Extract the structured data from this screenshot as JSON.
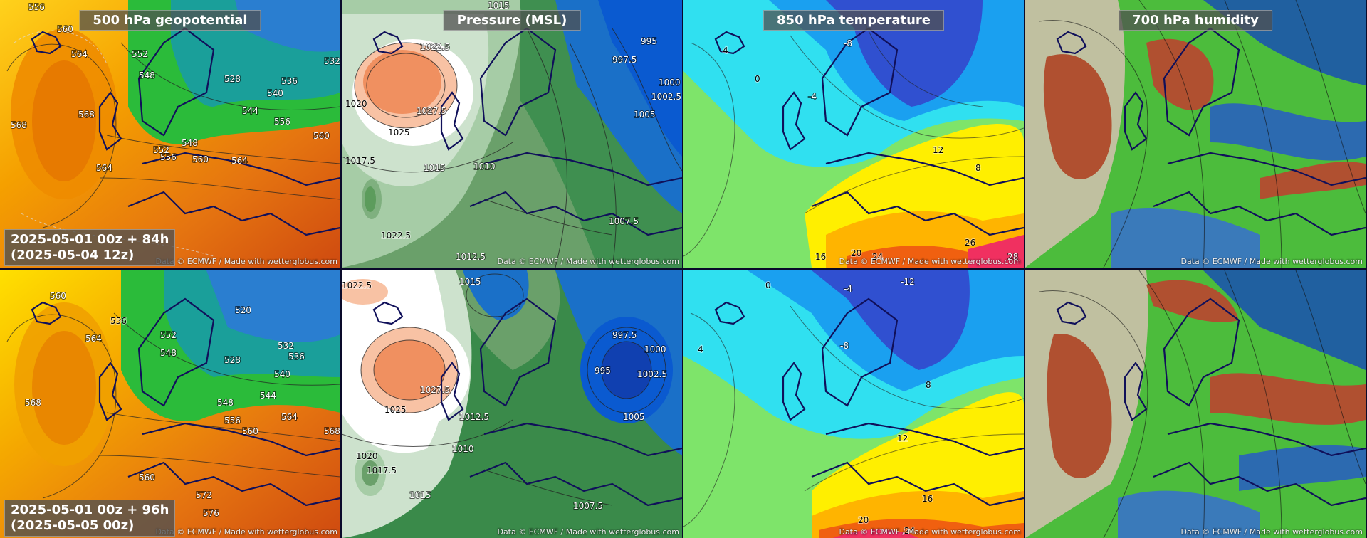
{
  "panels": {
    "geopotential": {
      "title": "500 hPa geopotential",
      "labels_top": [
        "556",
        "560",
        "564",
        "568",
        "552",
        "548",
        "540",
        "544",
        "536",
        "532",
        "528",
        "556",
        "560",
        "564",
        "568",
        "556",
        "560",
        "564",
        "548",
        "552"
      ],
      "labels_bottom": [
        "560",
        "556",
        "564",
        "568",
        "552",
        "548",
        "544",
        "540",
        "536",
        "532",
        "528",
        "520",
        "548",
        "556",
        "560",
        "564",
        "568",
        "572",
        "576",
        "560"
      ]
    },
    "pressure": {
      "title": "Pressure (MSL)",
      "labels_top": [
        "1022.5",
        "1025",
        "1027.5",
        "1020",
        "1017.5",
        "1015",
        "1012.5",
        "1010",
        "1007.5",
        "1005",
        "1002.5",
        "1000",
        "997.5",
        "995",
        "1015",
        "1022.5"
      ],
      "labels_bottom": [
        "1022.5",
        "1025",
        "1027.5",
        "1020",
        "1017.5",
        "1015",
        "1012.5",
        "1010",
        "1007.5",
        "1005",
        "1002.5",
        "1000",
        "997.5",
        "995",
        "1015"
      ]
    },
    "temperature": {
      "title": "850 hPa temperature",
      "labels_top": [
        "4",
        "0",
        "-4",
        "-8",
        "8",
        "12",
        "16",
        "20",
        "24",
        "26",
        "28"
      ],
      "labels_bottom": [
        "0",
        "-4",
        "-8",
        "-12",
        "4",
        "8",
        "12",
        "16",
        "20",
        "24"
      ]
    },
    "humidity": {
      "title": "700 hPa humidity"
    }
  },
  "credit": "Data © ECMWF / Made with wetterglobus.com",
  "runs": {
    "top": {
      "line1": "2025-05-01 00z + 84h",
      "line2": "(2025-05-04 12z)"
    },
    "bottom": {
      "line1": "2025-05-01 00z + 96h",
      "line2": "(2025-05-05 00z)"
    }
  },
  "colors": {
    "geopotential": [
      "#f5a000",
      "#ffd600",
      "#2db82d",
      "#1a9aa0",
      "#d05010"
    ],
    "pressure": [
      "#f07040",
      "#ffffff",
      "#3a8a3a",
      "#1070d0",
      "#a0c8a0"
    ],
    "temperature": [
      "#70e060",
      "#30e0f0",
      "#3050d0",
      "#ffef00",
      "#f03060"
    ],
    "humidity": [
      "#b05030",
      "#60d030",
      "#2060a0",
      "#c0c0a0"
    ],
    "coastline": "#10105a"
  }
}
